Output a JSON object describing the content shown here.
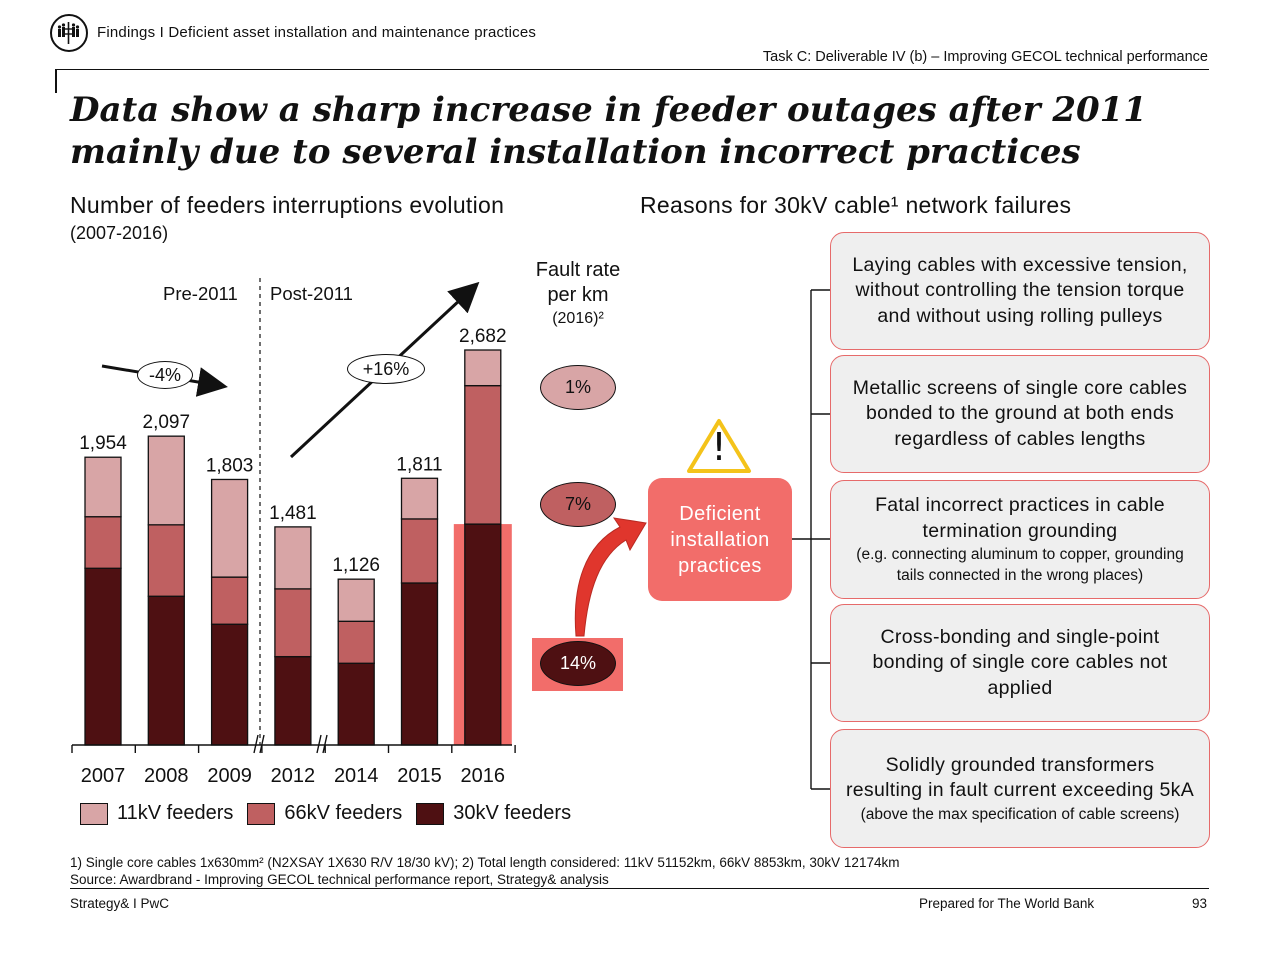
{
  "header": {
    "section": "Findings I Deficient asset installation and maintenance practices",
    "task": "Task C: Deliverable IV (b) – Improving GECOL technical performance",
    "title_line1": "Data show a sharp increase in feeder outages after 2011",
    "title_line2": "mainly due to several installation incorrect practices"
  },
  "left_panel": {
    "title": "Number of feeders interruptions evolution",
    "subtitle": "(2007-2016)",
    "pre_label": "Pre-2011",
    "post_label": "Post-2011",
    "pre_trend": "-4%",
    "post_trend": "+16%"
  },
  "chart_data": {
    "type": "bar",
    "stacked": true,
    "categories": [
      "2007",
      "2008",
      "2009",
      "2012",
      "2014",
      "2015",
      "2016"
    ],
    "totals": [
      1954,
      2097,
      1803,
      1481,
      1126,
      1811,
      2682
    ],
    "total_labels": [
      "1,954",
      "2,097",
      "1,803",
      "1,481",
      "1,126",
      "1,811",
      "2,682"
    ],
    "series": [
      {
        "name": "30kV feeders",
        "color": "#4e1012",
        "values": [
          1200,
          1010,
          820,
          600,
          555,
          1100,
          1500
        ]
      },
      {
        "name": "66kV feeders",
        "color": "#bf6061",
        "values": [
          350,
          485,
          320,
          460,
          285,
          435,
          940
        ]
      },
      {
        "name": "11kV feeders",
        "color": "#d8a5a6",
        "values": [
          404,
          602,
          663,
          421,
          286,
          276,
          242
        ]
      }
    ],
    "legend_position": "bottom",
    "axis_breaks_after": [
      "2009",
      "2012"
    ],
    "highlight_category": "2016",
    "highlight_color": "#f26d6a"
  },
  "fault_rate": {
    "heading_line1": "Fault rate",
    "heading_line2": "per km",
    "heading_line3": "(2016)²",
    "items": [
      {
        "label": "1%",
        "fill": "#d8a5a6",
        "text_color": "#111"
      },
      {
        "label": "7%",
        "fill": "#bf6061",
        "text_color": "#111"
      },
      {
        "label": "14%",
        "fill": "#4e1012",
        "text_color": "#ffffff"
      }
    ],
    "highlight_color": "#f26d6a"
  },
  "right_panel": {
    "title": "Reasons for 30kV cable¹ network failures",
    "warning_symbol": "!",
    "warning_icon": "warning-triangle-icon",
    "center_box": "Deficient installation practices",
    "reasons": [
      {
        "main": "Laying cables with excessive tension, without controlling the tension torque and without using rolling pulleys",
        "note": ""
      },
      {
        "main": "Metallic screens of single core cables bonded to the ground at both ends regardless of cables lengths",
        "note": ""
      },
      {
        "main": "Fatal incorrect practices in cable termination grounding",
        "note": "(e.g. connecting aluminum to copper, grounding tails connected in the wrong places)"
      },
      {
        "main": "Cross-bonding and single-point bonding of single core cables not applied",
        "note": ""
      },
      {
        "main": "Solidly grounded transformers resulting in  fault current exceeding 5kA",
        "note": "(above the max specification of cable screens)"
      }
    ]
  },
  "footnotes": {
    "line1": "1) Single core cables 1x630mm² (N2XSAY 1X630 R/V 18/30 kV); 2) Total length considered: 11kV 51152km, 66kV 8853km, 30kV 12174km",
    "line2": "Source: Awardbrand - Improving GECOL technical performance report, Strategy& analysis"
  },
  "footer": {
    "left": "Strategy& I PwC",
    "center": "Prepared for The World Bank",
    "page": "93"
  }
}
